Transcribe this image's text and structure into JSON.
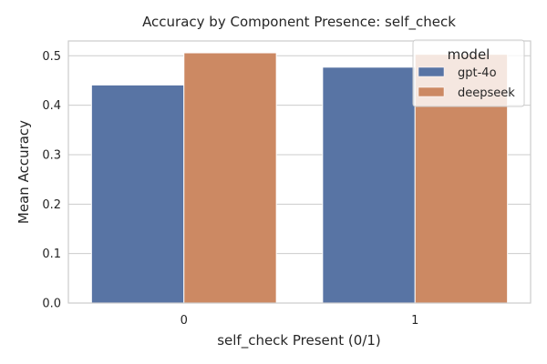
{
  "chart_data": {
    "type": "bar",
    "title": "Accuracy by Component Presence: self_check",
    "xlabel": "self_check Present (0/1)",
    "ylabel": "Mean Accuracy",
    "categories": [
      "0",
      "1"
    ],
    "ylim": [
      0,
      0.53
    ],
    "yticks": [
      0.0,
      0.1,
      0.2,
      0.3,
      0.4,
      0.5
    ],
    "ytick_labels": [
      "0.0",
      "0.1",
      "0.2",
      "0.3",
      "0.4",
      "0.5"
    ],
    "grid": true,
    "legend": {
      "title": "model",
      "placement": "top-right"
    },
    "series": [
      {
        "name": "gpt-4o",
        "color": "#5874a4",
        "values": [
          0.441,
          0.477
        ]
      },
      {
        "name": "deepseek",
        "color": "#cc8963",
        "values": [
          0.506,
          0.503
        ]
      }
    ]
  }
}
